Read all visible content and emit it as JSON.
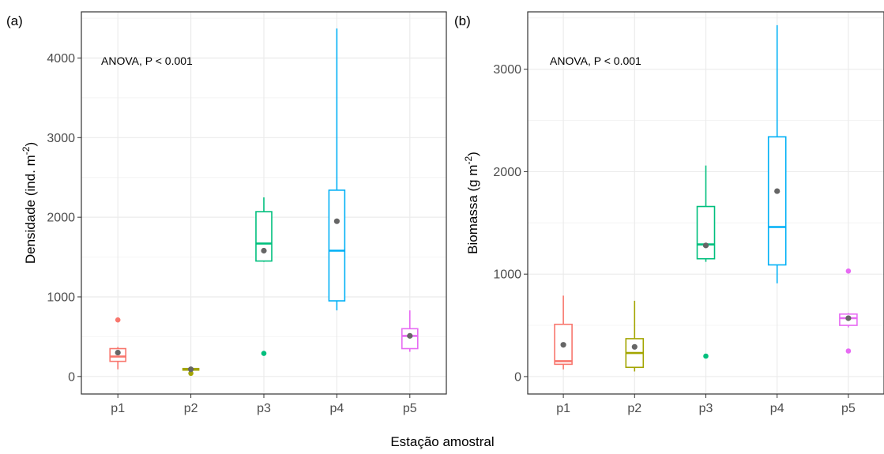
{
  "xlabel": "Estação amostral",
  "colors": {
    "p1": "#F8766D",
    "p2": "#A3A500",
    "p3": "#00BF7D",
    "p4": "#00B0F6",
    "p5": "#E76BF3",
    "mean": "#666666",
    "grid_major": "#ebebeb",
    "grid_minor": "#f4f4f4",
    "panel_border": "#333333"
  },
  "chart_data": [
    {
      "type": "box",
      "panel_tag": "(a)",
      "annotation": "ANOVA, P < 0.001",
      "ylabel": "Densidade (ind. m",
      "ylabel_sup": "-2",
      "ylabel_close": ")",
      "categories": [
        "p1",
        "p2",
        "p3",
        "p4",
        "p5"
      ],
      "yticks": [
        "0",
        "1000",
        "2000",
        "3000",
        "4000"
      ],
      "ylim": [
        -220,
        4580
      ],
      "grid": true,
      "boxes": [
        {
          "name": "p1",
          "whisker_low": 90,
          "q1": 190,
          "median": 250,
          "q3": 350,
          "whisker_high": 370,
          "mean": 300,
          "outliers": [
            710
          ]
        },
        {
          "name": "p2",
          "whisker_low": 40,
          "q1": 80,
          "median": 90,
          "q3": 100,
          "whisker_high": 110,
          "mean": 90,
          "outliers": [
            40
          ]
        },
        {
          "name": "p3",
          "whisker_low": 1440,
          "q1": 1450,
          "median": 1670,
          "q3": 2070,
          "whisker_high": 2250,
          "mean": 1580,
          "outliers": [
            290
          ]
        },
        {
          "name": "p4",
          "whisker_low": 830,
          "q1": 950,
          "median": 1580,
          "q3": 2340,
          "whisker_high": 4370,
          "mean": 1950,
          "outliers": []
        },
        {
          "name": "p5",
          "whisker_low": 310,
          "q1": 350,
          "median": 510,
          "q3": 600,
          "whisker_high": 830,
          "mean": 510,
          "outliers": []
        }
      ]
    },
    {
      "type": "box",
      "panel_tag": "(b)",
      "annotation": "ANOVA, P < 0.001",
      "ylabel": "Biomassa (g m",
      "ylabel_sup": "-2",
      "ylabel_close": ")",
      "categories": [
        "p1",
        "p2",
        "p3",
        "p4",
        "p5"
      ],
      "yticks": [
        "0",
        "1000",
        "2000",
        "3000"
      ],
      "ylim": [
        -170,
        3560
      ],
      "grid": true,
      "boxes": [
        {
          "name": "p1",
          "whisker_low": 70,
          "q1": 120,
          "median": 150,
          "q3": 510,
          "whisker_high": 790,
          "mean": 310,
          "outliers": []
        },
        {
          "name": "p2",
          "whisker_low": 50,
          "q1": 90,
          "median": 230,
          "q3": 370,
          "whisker_high": 740,
          "mean": 290,
          "outliers": []
        },
        {
          "name": "p3",
          "whisker_low": 1120,
          "q1": 1150,
          "median": 1290,
          "q3": 1660,
          "whisker_high": 2060,
          "mean": 1280,
          "outliers": [
            200
          ]
        },
        {
          "name": "p4",
          "whisker_low": 910,
          "q1": 1090,
          "median": 1460,
          "q3": 2340,
          "whisker_high": 3430,
          "mean": 1810,
          "outliers": []
        },
        {
          "name": "p5",
          "whisker_low": 480,
          "q1": 500,
          "median": 570,
          "q3": 610,
          "whisker_high": 620,
          "mean": 570,
          "outliers": [
            1030,
            250
          ]
        }
      ]
    }
  ]
}
